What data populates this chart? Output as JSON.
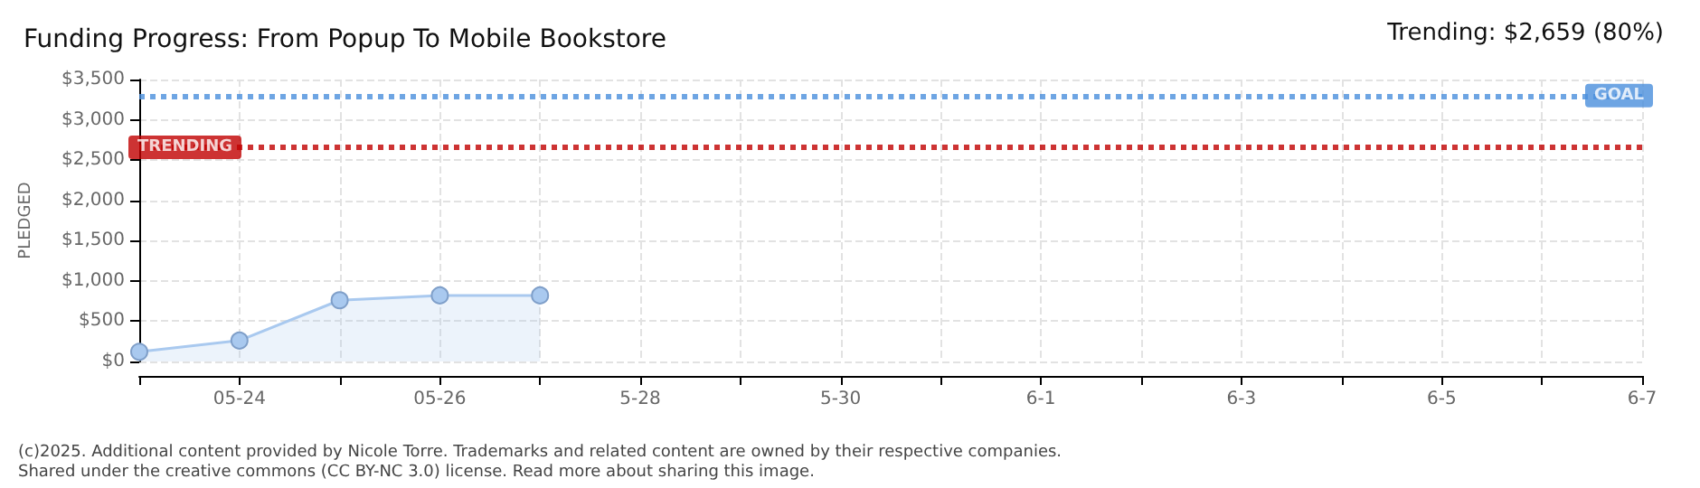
{
  "chart_data": {
    "type": "area",
    "title": "Funding Progress: From Popup To Mobile Bookstore",
    "ylabel": "PLEDGED",
    "annotations": [
      "Trending: $2,659 (80%)",
      "(c)2025. Additional content provided by Nicole Torre. Trademarks and related content are owned by their respective companies.",
      "Shared under the creative commons (CC BY-NC 3.0) license. Read more about sharing this image."
    ],
    "x": [
      "--05-23",
      "--05-24",
      "--05-25",
      "--05-26",
      "--05-27"
    ],
    "series": [
      {
        "color": "#a9c9ef",
        "values": [
          120,
          260,
          760,
          820,
          820
        ]
      }
    ],
    "xlim": [
      "--05-23",
      "--06-07"
    ],
    "xticks": [
      {
        "value": "--05-23",
        "label": null
      },
      {
        "value": "--05-24",
        "label": "05-24"
      },
      {
        "value": "--05-25",
        "label": null
      },
      {
        "value": "--05-26",
        "label": "05-26"
      },
      {
        "value": "--05-27",
        "label": null
      },
      {
        "value": "--05-28",
        "label": "5-28"
      },
      {
        "value": "--05-29",
        "label": null
      },
      {
        "value": "--05-30",
        "label": "5-30"
      },
      {
        "value": "--05-31",
        "label": null
      },
      {
        "value": "--06-01",
        "label": "6-1"
      },
      {
        "value": "--06-02",
        "label": null
      },
      {
        "value": "--06-03",
        "label": "6-3"
      },
      {
        "value": "--06-04",
        "label": null
      },
      {
        "value": "--06-05",
        "label": "6-5"
      },
      {
        "value": "--06-06",
        "label": null
      },
      {
        "value": "--06-07",
        "label": "6-7"
      }
    ],
    "ylim": [
      0,
      3500
    ],
    "yticks": [
      {
        "value": 0,
        "label": "$0"
      },
      {
        "value": 500,
        "label": "$500"
      },
      {
        "value": 1000,
        "label": "$1,000"
      },
      {
        "value": 1500,
        "label": "$1,500"
      },
      {
        "value": 2000,
        "label": "$2,000"
      },
      {
        "value": 2500,
        "label": "$2,500"
      },
      {
        "value": 3000,
        "label": "$3,000"
      },
      {
        "value": 3500,
        "label": "$3,500"
      }
    ],
    "ref_lines": [
      {
        "axis": "y",
        "value": 3300,
        "label": "GOAL",
        "color": "#4a8fdc",
        "line_style": "dotted"
      },
      {
        "axis": "y",
        "value": 2659,
        "label": "TRENDING",
        "color": "#c00000",
        "line_style": "dotted"
      }
    ],
    "grid": true,
    "marker": "circle",
    "line_style": "solid"
  }
}
